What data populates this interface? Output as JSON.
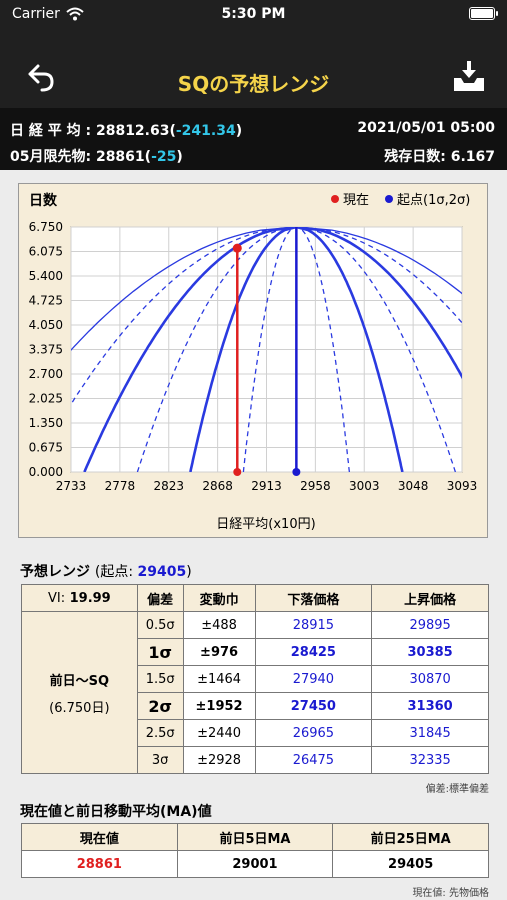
{
  "status": {
    "carrier": "Carrier",
    "time": "5:30 PM"
  },
  "nav": {
    "title": "SQの予想レンジ"
  },
  "info": {
    "nikkei_label": "日 経 平 均 : 28812.63(",
    "nikkei_change": "-241.34",
    "close_paren": ")",
    "datetime": "2021/05/01 05:00",
    "futures_label": "05月限先物: 28861(",
    "futures_change": "-25",
    "days_left": "残存日数: 6.167"
  },
  "chart_data": {
    "type": "line",
    "ylabel": "日数",
    "xlabel": "日経平均(x10円)",
    "legend": [
      {
        "label": "現在",
        "color": "#e02020"
      },
      {
        "label": "起点(1σ,2σ)",
        "color": "#1a1ad0"
      }
    ],
    "x_ticks": [
      "2733",
      "2778",
      "2823",
      "2868",
      "2913",
      "2958",
      "3003",
      "3048",
      "3093"
    ],
    "y_ticks": [
      "0.000",
      "0.675",
      "1.350",
      "2.025",
      "2.700",
      "3.375",
      "4.050",
      "4.725",
      "5.400",
      "6.075",
      "6.750"
    ],
    "xlim": [
      2733,
      3093
    ],
    "ylim": [
      0,
      6.75
    ],
    "origin": 2940.5,
    "days": 6.75,
    "sigma_widths": [
      48.8,
      97.6,
      146.4,
      195.2,
      244.0,
      292.8
    ],
    "current": {
      "x": 2886.1,
      "y": 6.167
    }
  },
  "range": {
    "title": "予想レンジ",
    "origin_label": "(起点: ",
    "origin_value": "29405",
    "origin_close": ")",
    "vi_label": "VI:",
    "vi_value": "19.99",
    "headers": [
      "偏差",
      "変動巾",
      "下落価格",
      "上昇価格"
    ],
    "period_label": "前日〜SQ",
    "period_days": "(6.750日)",
    "rows": [
      {
        "sigma": "0.5σ",
        "width": "±488",
        "down": "28915",
        "up": "29895",
        "bold": false
      },
      {
        "sigma": "1σ",
        "width": "±976",
        "down": "28425",
        "up": "30385",
        "bold": true
      },
      {
        "sigma": "1.5σ",
        "width": "±1464",
        "down": "27940",
        "up": "30870",
        "bold": false
      },
      {
        "sigma": "2σ",
        "width": "±1952",
        "down": "27450",
        "up": "31360",
        "bold": true
      },
      {
        "sigma": "2.5σ",
        "width": "±2440",
        "down": "26965",
        "up": "31845",
        "bold": false
      },
      {
        "sigma": "3σ",
        "width": "±2928",
        "down": "26475",
        "up": "32335",
        "bold": false
      }
    ],
    "note": "偏差:標準偏差"
  },
  "ma": {
    "title": "現在値と前日移動平均(MA)値",
    "headers": [
      "現在値",
      "前日5日MA",
      "前日25日MA"
    ],
    "values": [
      "28861",
      "29001",
      "29405"
    ],
    "note": "現在値: 先物価格"
  }
}
